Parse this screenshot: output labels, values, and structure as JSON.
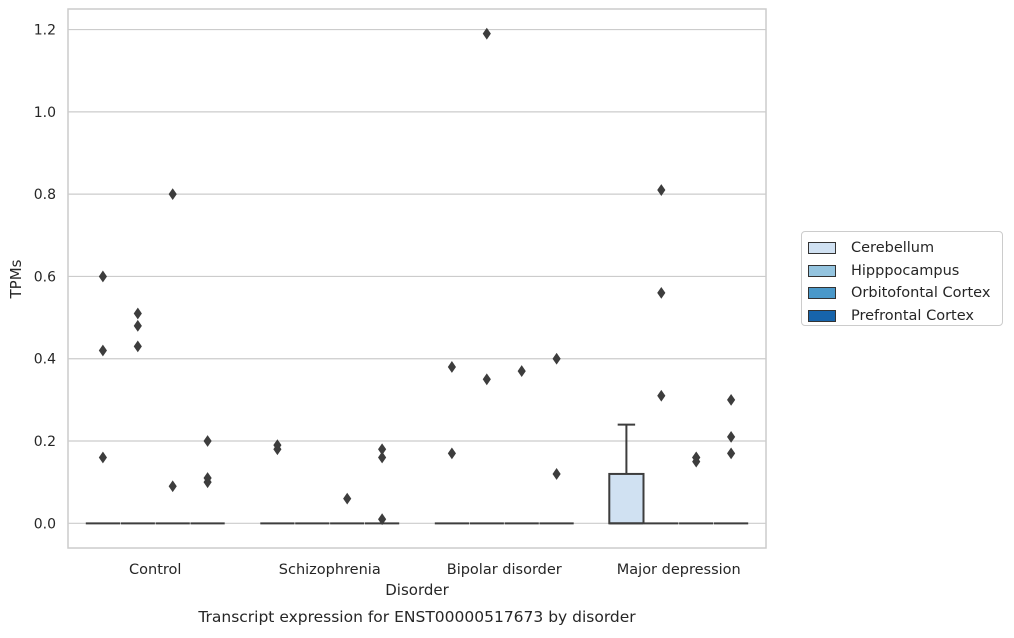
{
  "chart_data": {
    "type": "box",
    "title": "Transcript expression for ENST00000517673 by disorder",
    "xlabel": "Disorder",
    "ylabel": "TPMs",
    "categories": [
      "Control",
      "Schizophrenia",
      "Bipolar disorder",
      "Major depression"
    ],
    "ylim": [
      -0.06,
      1.25
    ],
    "yticks": [
      0.0,
      0.2,
      0.4,
      0.6,
      0.8,
      1.0,
      1.2
    ],
    "ytick_labels": [
      "0.0",
      "0.2",
      "0.4",
      "0.6",
      "0.8",
      "1.0",
      "1.2"
    ],
    "grid": "horizontal",
    "legend_position": "right",
    "series": [
      {
        "name": "Cerebellum",
        "color": "#d0e1f2",
        "boxes": [
          {
            "q1": 0,
            "median": 0,
            "q3": 0,
            "whisker_low": 0,
            "whisker_high": 0,
            "outliers": [
              0.16,
              0.42,
              0.6
            ]
          },
          {
            "q1": 0,
            "median": 0,
            "q3": 0,
            "whisker_low": 0,
            "whisker_high": 0,
            "outliers": [
              0.18,
              0.19
            ]
          },
          {
            "q1": 0,
            "median": 0,
            "q3": 0,
            "whisker_low": 0,
            "whisker_high": 0,
            "outliers": [
              0.17,
              0.38
            ]
          },
          {
            "q1": 0,
            "median": 0,
            "q3": 0.12,
            "whisker_low": 0,
            "whisker_high": 0.24,
            "outliers": []
          }
        ]
      },
      {
        "name": "Hipppocampus",
        "color": "#94c4df",
        "boxes": [
          {
            "q1": 0,
            "median": 0,
            "q3": 0,
            "whisker_low": 0,
            "whisker_high": 0,
            "outliers": [
              0.43,
              0.48,
              0.51
            ]
          },
          {
            "q1": 0,
            "median": 0,
            "q3": 0,
            "whisker_low": 0,
            "whisker_high": 0,
            "outliers": []
          },
          {
            "q1": 0,
            "median": 0,
            "q3": 0,
            "whisker_low": 0,
            "whisker_high": 0,
            "outliers": [
              0.35,
              1.19
            ]
          },
          {
            "q1": 0,
            "median": 0,
            "q3": 0,
            "whisker_low": 0,
            "whisker_high": 0,
            "outliers": [
              0.31,
              0.56,
              0.81
            ]
          }
        ]
      },
      {
        "name": "Orbitofontal Cortex",
        "color": "#4a98c9",
        "boxes": [
          {
            "q1": 0,
            "median": 0,
            "q3": 0,
            "whisker_low": 0,
            "whisker_high": 0,
            "outliers": [
              0.09,
              0.8
            ]
          },
          {
            "q1": 0,
            "median": 0,
            "q3": 0,
            "whisker_low": 0,
            "whisker_high": 0,
            "outliers": [
              0.06
            ]
          },
          {
            "q1": 0,
            "median": 0,
            "q3": 0,
            "whisker_low": 0,
            "whisker_high": 0,
            "outliers": [
              0.37
            ]
          },
          {
            "q1": 0,
            "median": 0,
            "q3": 0,
            "whisker_low": 0,
            "whisker_high": 0,
            "outliers": [
              0.15,
              0.16,
              0.16
            ]
          }
        ]
      },
      {
        "name": "Prefrontal Cortex",
        "color": "#1764ab",
        "boxes": [
          {
            "q1": 0,
            "median": 0,
            "q3": 0,
            "whisker_low": 0,
            "whisker_high": 0,
            "outliers": [
              0.1,
              0.11,
              0.2
            ]
          },
          {
            "q1": 0,
            "median": 0,
            "q3": 0,
            "whisker_low": 0,
            "whisker_high": 0,
            "outliers": [
              0.01,
              0.16,
              0.18
            ]
          },
          {
            "q1": 0,
            "median": 0,
            "q3": 0,
            "whisker_low": 0,
            "whisker_high": 0,
            "outliers": [
              0.12,
              0.4
            ]
          },
          {
            "q1": 0,
            "median": 0,
            "q3": 0,
            "whisker_low": 0,
            "whisker_high": 0,
            "outliers": [
              0.17,
              0.21,
              0.3
            ]
          }
        ]
      }
    ]
  }
}
